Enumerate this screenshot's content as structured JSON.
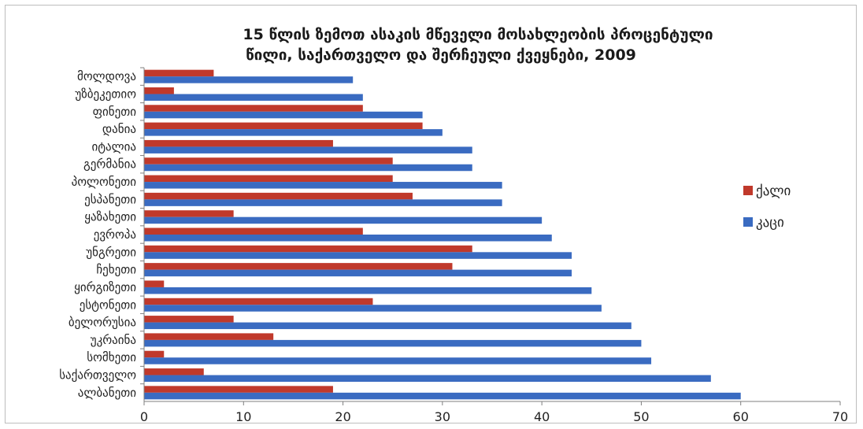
{
  "chart_data": {
    "type": "bar",
    "orientation": "horizontal",
    "title_lines": [
      "15 წლის ზემოთ ასაკის მწეველი მოსახლეობის პროცენტული",
      "წილი, საქართველო და შერჩეული ქვეყნები, 2009"
    ],
    "categories": [
      "მოლდოვა",
      "უზბეკეთიო",
      "ფინეთი",
      "დანია",
      "იტალია",
      "გერმანია",
      "პოლონეთი",
      "ესპანეთი",
      "ყაზახეთი",
      "ევროპა",
      "უნგრეთი",
      "ჩეხეთი",
      "ყირგიზეთი",
      "ესტონეთი",
      "ბელორუსია",
      "უკრაინა",
      "სომხეთი",
      "საქართველო",
      "ალბანეთი"
    ],
    "series": [
      {
        "name": "ქალი",
        "color": "#c0392b",
        "values": [
          7,
          3,
          22,
          28,
          19,
          25,
          25,
          27,
          9,
          22,
          33,
          31,
          2,
          23,
          9,
          13,
          2,
          6,
          19
        ]
      },
      {
        "name": "კაცი",
        "color": "#3a6bc1",
        "values": [
          21,
          22,
          28,
          30,
          33,
          33,
          36,
          36,
          40,
          41,
          43,
          43,
          45,
          46,
          49,
          50,
          51,
          57,
          60
        ]
      }
    ],
    "xlim": [
      0,
      70
    ],
    "xticks": [
      "0",
      "10",
      "20",
      "30",
      "40",
      "50",
      "60",
      "70"
    ],
    "legend_position": "right",
    "grid": false
  }
}
